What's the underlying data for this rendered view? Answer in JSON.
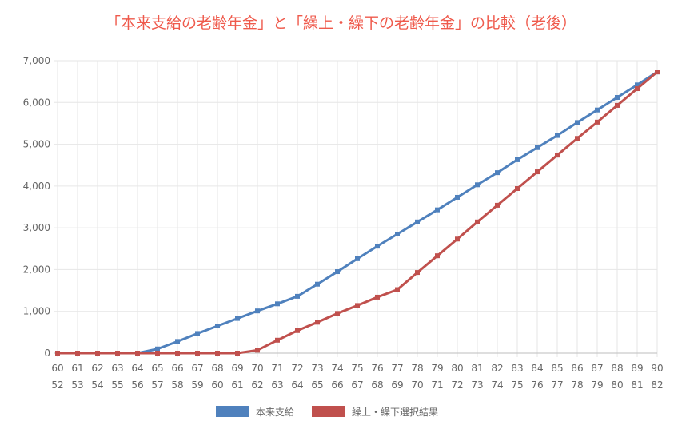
{
  "chart_data": {
    "type": "line",
    "title": "「本来支給の老齢年金」と「繰上・繰下の老齢年金」の比較（老後）",
    "x_labels_row1": [
      "60",
      "61",
      "62",
      "63",
      "64",
      "65",
      "66",
      "67",
      "68",
      "69",
      "70",
      "71",
      "72",
      "73",
      "74",
      "75",
      "76",
      "77",
      "78",
      "79",
      "80",
      "81",
      "82",
      "83",
      "84",
      "85",
      "86",
      "87",
      "88",
      "89",
      "90"
    ],
    "x_labels_row2": [
      "52",
      "53",
      "54",
      "55",
      "56",
      "57",
      "58",
      "59",
      "60",
      "61",
      "62",
      "63",
      "64",
      "65",
      "66",
      "67",
      "68",
      "69",
      "70",
      "71",
      "72",
      "73",
      "74",
      "75",
      "76",
      "77",
      "78",
      "79",
      "80",
      "81",
      "82"
    ],
    "y_ticks": [
      "0",
      "1,000",
      "2,000",
      "3,000",
      "4,000",
      "5,000",
      "6,000",
      "7,000"
    ],
    "ylim": [
      0,
      7000
    ],
    "grid": true,
    "legend_position": "bottom",
    "series": [
      {
        "name": "本来支給",
        "color": "#4f81bd",
        "values": [
          0,
          0,
          0,
          0,
          0,
          100,
          280,
          470,
          650,
          830,
          1010,
          1180,
          1360,
          1650,
          1950,
          2260,
          2560,
          2850,
          3140,
          3430,
          3730,
          4030,
          4320,
          4630,
          4920,
          5210,
          5520,
          5820,
          6120,
          6420,
          6730
        ]
      },
      {
        "name": "繰上・繰下選択結果",
        "color": "#c0504d",
        "values": [
          0,
          0,
          0,
          0,
          0,
          0,
          0,
          0,
          0,
          0,
          70,
          310,
          540,
          740,
          950,
          1140,
          1340,
          1520,
          1930,
          2330,
          2730,
          3140,
          3540,
          3940,
          4340,
          4740,
          5140,
          5530,
          5930,
          6330,
          6730
        ]
      }
    ]
  }
}
